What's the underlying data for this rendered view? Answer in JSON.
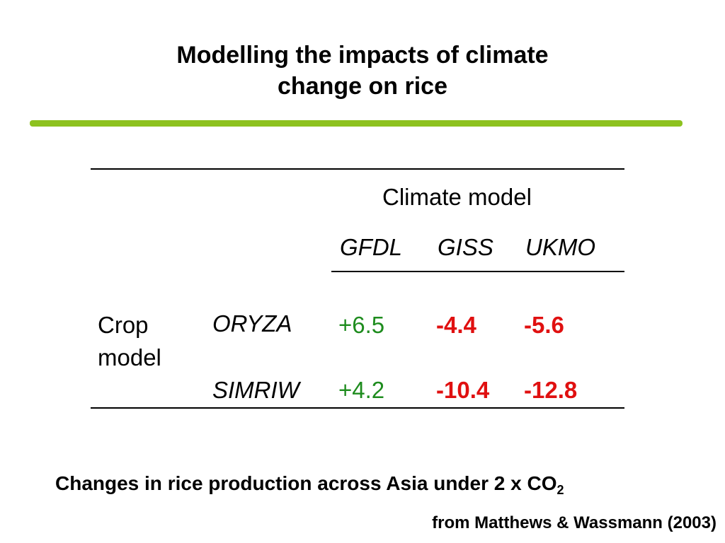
{
  "slide": {
    "title_line1": "Modelling the impacts of climate",
    "title_line2": "change on rice",
    "accent_color": "#8DC21F"
  },
  "table": {
    "group_header": "Climate model",
    "columns": [
      "GFDL",
      "GISS",
      "UKMO"
    ],
    "row_header_line1": "Crop",
    "row_header_line2": "model",
    "rows": [
      {
        "label": "ORYZA",
        "values": [
          "+6.5",
          "-4.4",
          "-5.6"
        ]
      },
      {
        "label": "SIMRIW",
        "values": [
          "+4.2",
          "-10.4",
          "-12.8"
        ]
      }
    ],
    "positive_color": "#1E8C1E",
    "negative_color": "#E01010"
  },
  "caption": {
    "text": "Changes in rice production across Asia under 2 x CO",
    "subscript": "2"
  },
  "source": "from Matthews & Wassmann (2003)"
}
